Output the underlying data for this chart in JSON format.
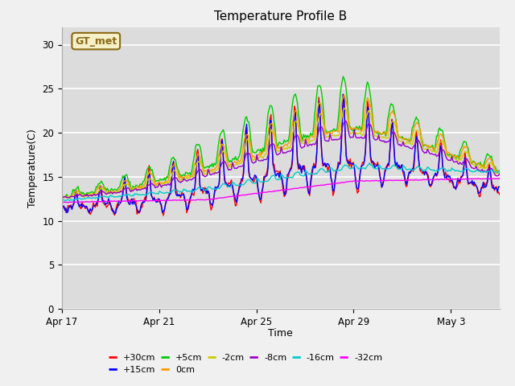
{
  "title": "Temperature Profile B",
  "xlabel": "Time",
  "ylabel": "Temperature(C)",
  "ylim": [
    0,
    32
  ],
  "yticks": [
    0,
    5,
    10,
    15,
    20,
    25,
    30
  ],
  "annotation": "GT_met",
  "series_labels": [
    "+30cm",
    "+15cm",
    "+5cm",
    "0cm",
    "-2cm",
    "-8cm",
    "-16cm",
    "-32cm"
  ],
  "series_colors": [
    "#ff0000",
    "#0000ff",
    "#00cc00",
    "#ff9900",
    "#cccc00",
    "#9900cc",
    "#00cccc",
    "#ff00ff"
  ],
  "series_linewidths": [
    1.0,
    1.0,
    1.0,
    1.0,
    1.0,
    1.0,
    1.0,
    1.0
  ],
  "n_days": 18,
  "x_tick_labels": [
    "Apr 17",
    "Apr 21",
    "Apr 25",
    "Apr 29",
    "May 3"
  ],
  "x_tick_positions": [
    0,
    4,
    8,
    12,
    16
  ],
  "background_color": "#dcdcdc",
  "plot_bg_color": "#dcdcdc",
  "grid_color": "#ffffff",
  "title_fontsize": 11,
  "label_fontsize": 9,
  "tick_fontsize": 8.5
}
